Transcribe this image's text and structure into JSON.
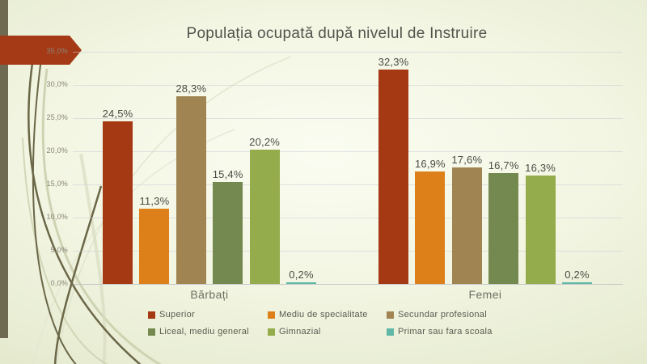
{
  "colors": {
    "left_bar": "#6e6a51",
    "arrow": "#a53a16",
    "title_text": "#53534d",
    "axis_text": "#8a8478",
    "label_text": "#4b4b45",
    "grid": "#c9cdd6",
    "background_center": "#fafcf1",
    "background_edge": "#d7deb9"
  },
  "chart_data": {
    "type": "bar",
    "title": "Populația ocupată după nivelul de Instruire",
    "categories": [
      "Bărbați",
      "Femei"
    ],
    "series": [
      {
        "name": "Superior",
        "color": "#a43913",
        "values": [
          24.5,
          32.3
        ],
        "labels": [
          "24,5%",
          "32,3%"
        ]
      },
      {
        "name": "Mediu de specialitate",
        "color": "#de8019",
        "values": [
          11.3,
          16.9
        ],
        "labels": [
          "11,3%",
          "16,9%"
        ]
      },
      {
        "name": "Secundar profesional",
        "color": "#a08552",
        "values": [
          28.3,
          17.6
        ],
        "labels": [
          "28,3%",
          "17,6%"
        ]
      },
      {
        "name": "Liceal, mediu general",
        "color": "#74894f",
        "values": [
          15.4,
          16.7
        ],
        "labels": [
          "15,4%",
          "16,7%"
        ]
      },
      {
        "name": "Gimnazial",
        "color": "#94ac4b",
        "values": [
          20.2,
          16.3
        ],
        "labels": [
          "20,2%",
          "16,3%"
        ]
      },
      {
        "name": "Primar sau fara scoala",
        "color": "#5fb8a5",
        "values": [
          0.2,
          0.2
        ],
        "labels": [
          "0,2%",
          "0,2%"
        ]
      }
    ],
    "y_axis": {
      "ticks": [
        "35,0%",
        "30,0%",
        "25,0%",
        "20,0%",
        "15,0%",
        "10,0%",
        "5,0%",
        "0,0%"
      ],
      "min": 0,
      "max": 35,
      "step": 5
    },
    "ylim": [
      0,
      35
    ],
    "grid": true,
    "legend_position": "bottom"
  }
}
